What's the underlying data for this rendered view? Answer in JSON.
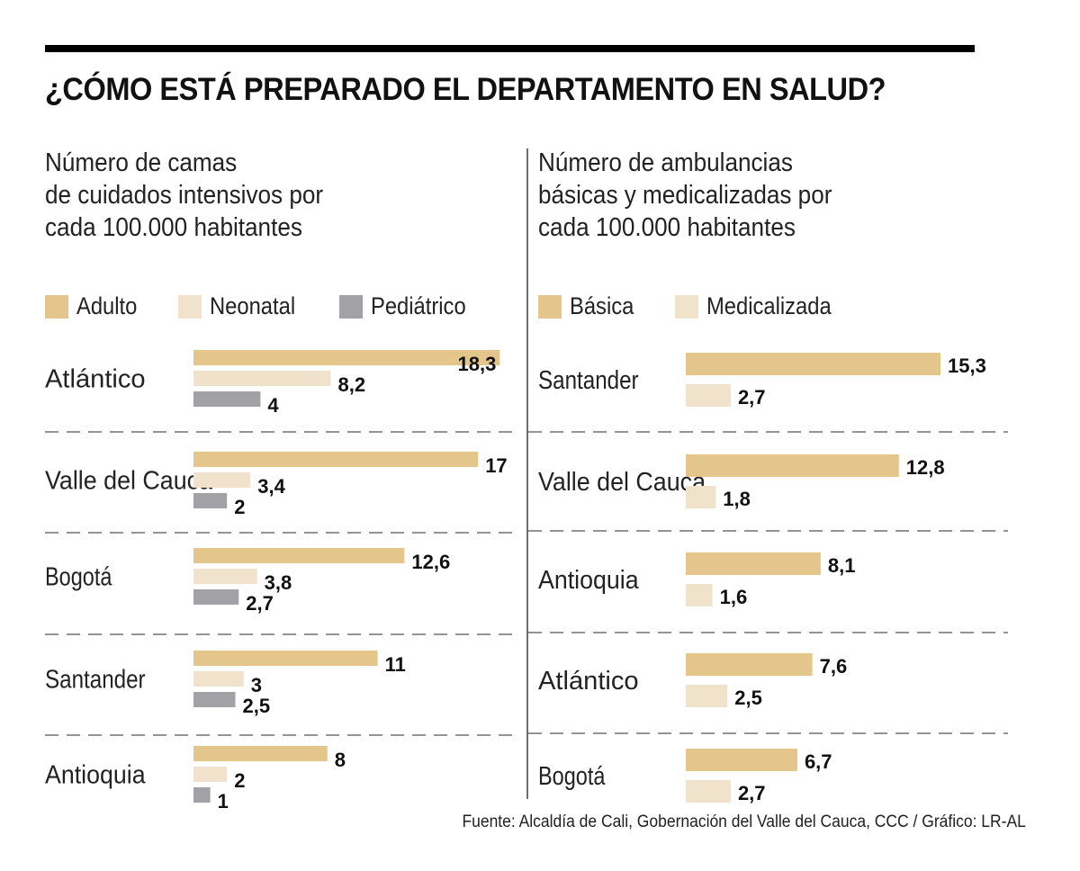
{
  "header": {
    "title": "¿CÓMO ESTÁ PREPARADO EL DEPARTAMENTO EN SALUD?"
  },
  "source": "Fuente: Alcaldía de Cali, Gobernación del Valle del Cauca, CCC / Gráfico: LR-AL",
  "colors": {
    "adulto": "#e4c68d",
    "neonatal": "#f1e2cc",
    "pediatrico": "#a2a1a6",
    "basica": "#e4c68d",
    "medicalizada": "#f1e2cc",
    "divider": "#6e6e6e",
    "dash": "#555555"
  },
  "chart_data": [
    {
      "type": "bar",
      "orientation": "horizontal",
      "title": "Número de camas\nde cuidados intensivos por\ncada 100.000 habitantes",
      "categories": [
        "Atlántico",
        "Valle del Cauca",
        "Bogotá",
        "Santander",
        "Antioquia"
      ],
      "series": [
        {
          "name": "Adulto",
          "color_key": "adulto",
          "values": [
            18.3,
            17,
            12.6,
            11,
            8
          ],
          "labels": [
            "18,3",
            "17",
            "12,6",
            "11",
            "8"
          ]
        },
        {
          "name": "Neonatal",
          "color_key": "neonatal",
          "values": [
            8.2,
            3.4,
            3.8,
            3,
            2
          ],
          "labels": [
            "8,2",
            "3,4",
            "3,8",
            "3",
            "2"
          ]
        },
        {
          "name": "Pediátrico",
          "color_key": "pediatrico",
          "values": [
            4,
            2,
            2.7,
            2.5,
            1
          ],
          "labels": [
            "4",
            "2",
            "2,7",
            "2,5",
            "1"
          ]
        }
      ],
      "legend": "top-left",
      "grid": false
    },
    {
      "type": "bar",
      "orientation": "horizontal",
      "title": "Número de ambulancias\nbásicas y medicalizadas por\ncada 100.000 habitantes",
      "categories": [
        "Santander",
        "Valle del Cauca",
        "Antioquia",
        "Atlántico",
        "Bogotá"
      ],
      "series": [
        {
          "name": "Básica",
          "color_key": "basica",
          "values": [
            15.3,
            12.8,
            8.1,
            7.6,
            6.7
          ],
          "labels": [
            "15,3",
            "12,8",
            "8,1",
            "7,6",
            "6,7"
          ]
        },
        {
          "name": "Medicalizada",
          "color_key": "medicalizada",
          "values": [
            2.7,
            1.8,
            1.6,
            2.5,
            2.7
          ],
          "labels": [
            "2,7",
            "1,8",
            "1,6",
            "2,5",
            "2,7"
          ]
        }
      ],
      "legend": "top-left",
      "grid": false
    }
  ]
}
